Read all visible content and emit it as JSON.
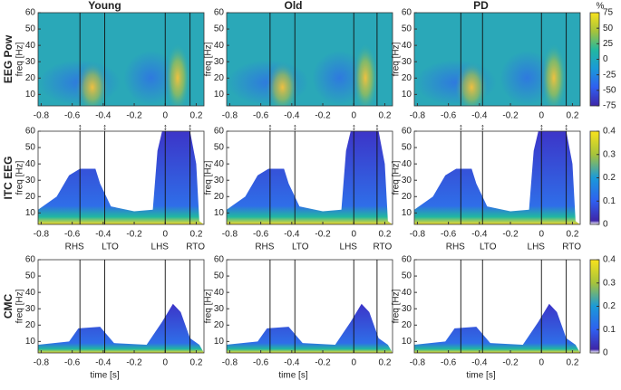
{
  "chart_data": {
    "type": "heatmap",
    "columns": [
      "Young",
      "Old",
      "PD"
    ],
    "rows": [
      {
        "label": "EEG Pow",
        "ylabel": "freq [Hz]",
        "clim": [
          -75,
          75
        ],
        "cticks": [
          75,
          50,
          25,
          0,
          -25,
          -50,
          -75
        ],
        "cunit": "%"
      },
      {
        "label": "ITC EEG",
        "ylabel": "freq [Hz]",
        "clim": [
          0,
          0.4
        ],
        "cticks": [
          0.4,
          0.3,
          0.2,
          0.1,
          0
        ]
      },
      {
        "label": "CMC",
        "ylabel": "freq [Hz]",
        "clim": [
          0,
          0.4
        ],
        "cticks": [
          0.4,
          0.3,
          0.2,
          0.1,
          0
        ]
      }
    ],
    "xlim": [
      -0.82,
      0.25
    ],
    "xticks": [
      -0.8,
      -0.6,
      -0.4,
      -0.2,
      0,
      0.2
    ],
    "ylim": [
      3,
      60
    ],
    "yticks": [
      10,
      20,
      30,
      40,
      50,
      60
    ],
    "xlabel": "time [s]",
    "events": {
      "names": [
        "RHS",
        "LTO",
        "LHS",
        "RTO"
      ],
      "times": [
        [
          -0.55,
          -0.39,
          0,
          0.16
        ],
        [
          -0.54,
          -0.38,
          0,
          0.15
        ],
        [
          -0.52,
          -0.38,
          0,
          0.16
        ]
      ]
    },
    "symbol": "↕"
  }
}
